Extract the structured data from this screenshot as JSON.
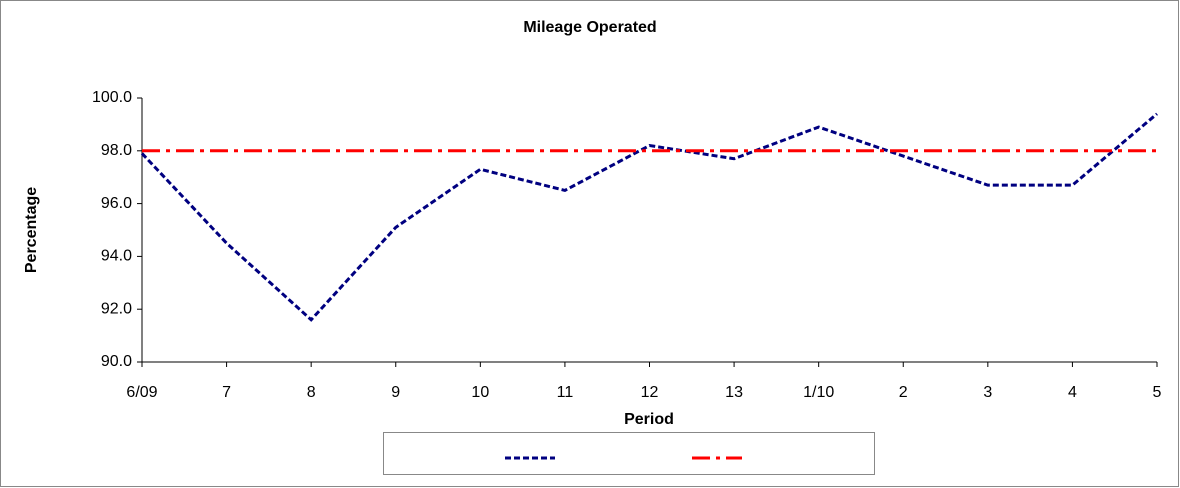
{
  "chart_data": {
    "type": "line",
    "title": "Mileage Operated",
    "x_label": "Period",
    "y_label": "Percentage",
    "categories": [
      "6/09",
      "7",
      "8",
      "9",
      "10",
      "11",
      "12",
      "13",
      "1/10",
      "2",
      "3",
      "4",
      "5"
    ],
    "series": [
      {
        "color": "#000080",
        "dash": "dash",
        "values": [
          97.9,
          94.5,
          91.6,
          95.1,
          97.3,
          96.5,
          98.2,
          97.7,
          98.9,
          97.8,
          96.7,
          96.7,
          99.4
        ]
      },
      {
        "color": "#ff0000",
        "dash": "dash-dot",
        "values": [
          98,
          98,
          98,
          98,
          98,
          98,
          98,
          98,
          98,
          98,
          98,
          98,
          98
        ]
      }
    ],
    "ylim": [
      90,
      100
    ],
    "yticks": [
      {
        "value": 90,
        "label": "90.0"
      },
      {
        "value": 92,
        "label": "92.0"
      },
      {
        "value": 94,
        "label": "94.0"
      },
      {
        "value": 96,
        "label": "96.0"
      },
      {
        "value": 98,
        "label": "98.0"
      },
      {
        "value": 100,
        "label": "100.0"
      }
    ],
    "grid": false
  }
}
